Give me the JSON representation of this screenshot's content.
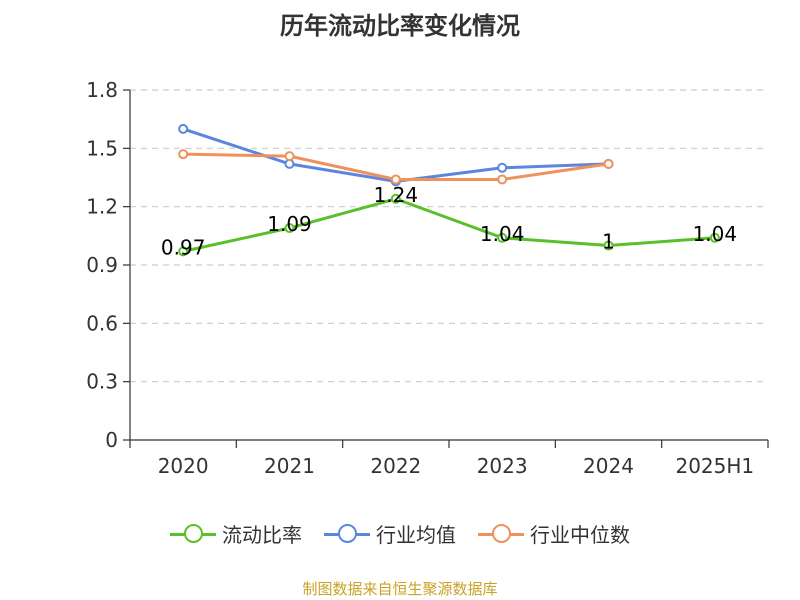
{
  "chart_data": {
    "type": "line",
    "title": "历年流动比率变化情况",
    "categories": [
      "2020",
      "2021",
      "2022",
      "2023",
      "2024",
      "2025H1"
    ],
    "ylim": [
      0,
      1.8
    ],
    "yticks": [
      "0",
      "0.3",
      "0.6",
      "0.9",
      "1.2",
      "1.5",
      "1.8"
    ],
    "grid": true,
    "legend_position": "bottom",
    "series": [
      {
        "name": "流动比率",
        "color": "#5ac02a",
        "values": [
          0.97,
          1.09,
          1.24,
          1.04,
          1.0,
          1.04
        ],
        "labels": [
          "0.97",
          "1.09",
          "1.24",
          "1.04",
          "1",
          "1.04"
        ],
        "show_labels": true
      },
      {
        "name": "行业均值",
        "color": "#5b86e0",
        "values": [
          1.6,
          1.42,
          1.33,
          1.4,
          1.42,
          null
        ],
        "show_labels": false
      },
      {
        "name": "行业中位数",
        "color": "#f0915c",
        "values": [
          1.47,
          1.46,
          1.34,
          1.34,
          1.42,
          null
        ],
        "show_labels": false
      }
    ]
  },
  "source_text": "制图数据来自恒生聚源数据库"
}
